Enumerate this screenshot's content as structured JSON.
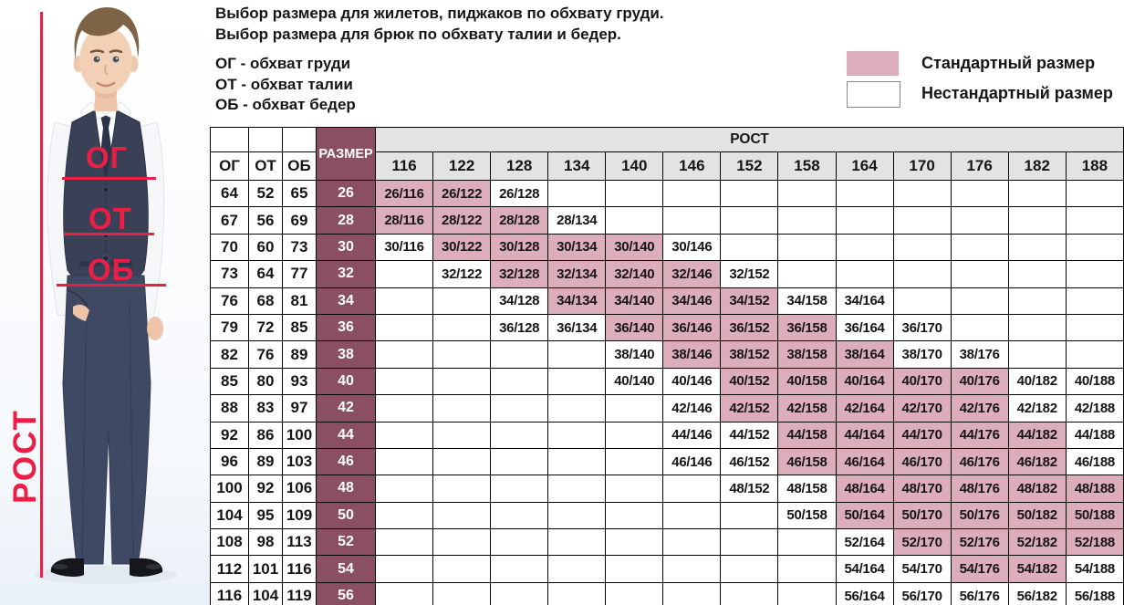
{
  "theme": {
    "accent-red": "#ed1e45",
    "standard-pink": "#dcadbb",
    "header-maroon": "#8b4f63",
    "header-gray": "#e3e3e3"
  },
  "description": {
    "line1": "Выбор размера для жилетов, пиджаков по обхвату груди.",
    "line2": "Выбор размера для брюк по обхвату талии и бедер.",
    "abbr1": "ОГ - обхват груди",
    "abbr2": "ОТ - обхват талии",
    "abbr3": "ОБ - обхват бедер"
  },
  "legend": {
    "standard_label": "Стандартный размер",
    "nonstandard_label": "Нестандартный размер",
    "standard_color": "#dcadbb",
    "nonstandard_color": "#ffffff"
  },
  "figure": {
    "chest_label": "ОГ",
    "waist_label": "ОТ",
    "hips_label": "ОБ",
    "height_label": "РОСТ"
  },
  "chart_data": {
    "type": "table",
    "rost_header": "РОСТ",
    "size_header": "РАЗМЕР",
    "measure_headers": [
      "ОГ",
      "ОТ",
      "ОБ"
    ],
    "heights": [
      "116",
      "122",
      "128",
      "134",
      "140",
      "146",
      "152",
      "158",
      "164",
      "170",
      "176",
      "182",
      "188"
    ],
    "legend_note": "s=1 Стандартный размер (розовый), s=0 Нестандартный размер (белый)",
    "rows": [
      {
        "og": "64",
        "ot": "52",
        "ob": "65",
        "size": "26",
        "cells": [
          {
            "t": "26/116",
            "s": 1
          },
          {
            "t": "26/122",
            "s": 1
          },
          {
            "t": "26/128",
            "s": 0
          },
          null,
          null,
          null,
          null,
          null,
          null,
          null,
          null,
          null,
          null
        ]
      },
      {
        "og": "67",
        "ot": "56",
        "ob": "69",
        "size": "28",
        "cells": [
          {
            "t": "28/116",
            "s": 1
          },
          {
            "t": "28/122",
            "s": 1
          },
          {
            "t": "28/128",
            "s": 1
          },
          {
            "t": "28/134",
            "s": 0
          },
          null,
          null,
          null,
          null,
          null,
          null,
          null,
          null,
          null
        ]
      },
      {
        "og": "70",
        "ot": "60",
        "ob": "73",
        "size": "30",
        "cells": [
          {
            "t": "30/116",
            "s": 0
          },
          {
            "t": "30/122",
            "s": 1
          },
          {
            "t": "30/128",
            "s": 1
          },
          {
            "t": "30/134",
            "s": 1
          },
          {
            "t": "30/140",
            "s": 1
          },
          {
            "t": "30/146",
            "s": 0
          },
          null,
          null,
          null,
          null,
          null,
          null,
          null
        ]
      },
      {
        "og": "73",
        "ot": "64",
        "ob": "77",
        "size": "32",
        "cells": [
          null,
          {
            "t": "32/122",
            "s": 0
          },
          {
            "t": "32/128",
            "s": 1
          },
          {
            "t": "32/134",
            "s": 1
          },
          {
            "t": "32/140",
            "s": 1
          },
          {
            "t": "32/146",
            "s": 1
          },
          {
            "t": "32/152",
            "s": 0
          },
          null,
          null,
          null,
          null,
          null,
          null
        ]
      },
      {
        "og": "76",
        "ot": "68",
        "ob": "81",
        "size": "34",
        "cells": [
          null,
          null,
          {
            "t": "34/128",
            "s": 0
          },
          {
            "t": "34/134",
            "s": 1
          },
          {
            "t": "34/140",
            "s": 1
          },
          {
            "t": "34/146",
            "s": 1
          },
          {
            "t": "34/152",
            "s": 1
          },
          {
            "t": "34/158",
            "s": 0
          },
          {
            "t": "34/164",
            "s": 0
          },
          null,
          null,
          null,
          null
        ]
      },
      {
        "og": "79",
        "ot": "72",
        "ob": "85",
        "size": "36",
        "cells": [
          null,
          null,
          {
            "t": "36/128",
            "s": 0
          },
          {
            "t": "36/134",
            "s": 0
          },
          {
            "t": "36/140",
            "s": 1
          },
          {
            "t": "36/146",
            "s": 1
          },
          {
            "t": "36/152",
            "s": 1
          },
          {
            "t": "36/158",
            "s": 1
          },
          {
            "t": "36/164",
            "s": 0
          },
          {
            "t": "36/170",
            "s": 0
          },
          null,
          null,
          null
        ]
      },
      {
        "og": "82",
        "ot": "76",
        "ob": "89",
        "size": "38",
        "cells": [
          null,
          null,
          null,
          null,
          {
            "t": "38/140",
            "s": 0
          },
          {
            "t": "38/146",
            "s": 1
          },
          {
            "t": "38/152",
            "s": 1
          },
          {
            "t": "38/158",
            "s": 1
          },
          {
            "t": "38/164",
            "s": 1
          },
          {
            "t": "38/170",
            "s": 0
          },
          {
            "t": "38/176",
            "s": 0
          },
          null,
          null
        ]
      },
      {
        "og": "85",
        "ot": "80",
        "ob": "93",
        "size": "40",
        "cells": [
          null,
          null,
          null,
          null,
          {
            "t": "40/140",
            "s": 0
          },
          {
            "t": "40/146",
            "s": 0
          },
          {
            "t": "40/152",
            "s": 1
          },
          {
            "t": "40/158",
            "s": 1
          },
          {
            "t": "40/164",
            "s": 1
          },
          {
            "t": "40/170",
            "s": 1
          },
          {
            "t": "40/176",
            "s": 1
          },
          {
            "t": "40/182",
            "s": 0
          },
          {
            "t": "40/188",
            "s": 0
          }
        ]
      },
      {
        "og": "88",
        "ot": "83",
        "ob": "97",
        "size": "42",
        "cells": [
          null,
          null,
          null,
          null,
          null,
          {
            "t": "42/146",
            "s": 0
          },
          {
            "t": "42/152",
            "s": 1
          },
          {
            "t": "42/158",
            "s": 1
          },
          {
            "t": "42/164",
            "s": 1
          },
          {
            "t": "42/170",
            "s": 1
          },
          {
            "t": "42/176",
            "s": 1
          },
          {
            "t": "42/182",
            "s": 0
          },
          {
            "t": "42/188",
            "s": 0
          }
        ]
      },
      {
        "og": "92",
        "ot": "86",
        "ob": "100",
        "size": "44",
        "cells": [
          null,
          null,
          null,
          null,
          null,
          {
            "t": "44/146",
            "s": 0
          },
          {
            "t": "44/152",
            "s": 0
          },
          {
            "t": "44/158",
            "s": 1
          },
          {
            "t": "44/164",
            "s": 1
          },
          {
            "t": "44/170",
            "s": 1
          },
          {
            "t": "44/176",
            "s": 1
          },
          {
            "t": "44/182",
            "s": 1
          },
          {
            "t": "44/188",
            "s": 0
          }
        ]
      },
      {
        "og": "96",
        "ot": "89",
        "ob": "103",
        "size": "46",
        "cells": [
          null,
          null,
          null,
          null,
          null,
          {
            "t": "46/146",
            "s": 0
          },
          {
            "t": "46/152",
            "s": 0
          },
          {
            "t": "46/158",
            "s": 1
          },
          {
            "t": "46/164",
            "s": 1
          },
          {
            "t": "46/170",
            "s": 1
          },
          {
            "t": "46/176",
            "s": 1
          },
          {
            "t": "46/182",
            "s": 1
          },
          {
            "t": "46/188",
            "s": 0
          }
        ]
      },
      {
        "og": "100",
        "ot": "92",
        "ob": "106",
        "size": "48",
        "cells": [
          null,
          null,
          null,
          null,
          null,
          null,
          {
            "t": "48/152",
            "s": 0
          },
          {
            "t": "48/158",
            "s": 0
          },
          {
            "t": "48/164",
            "s": 1
          },
          {
            "t": "48/170",
            "s": 1
          },
          {
            "t": "48/176",
            "s": 1
          },
          {
            "t": "48/182",
            "s": 1
          },
          {
            "t": "48/188",
            "s": 1
          }
        ]
      },
      {
        "og": "104",
        "ot": "95",
        "ob": "109",
        "size": "50",
        "cells": [
          null,
          null,
          null,
          null,
          null,
          null,
          null,
          {
            "t": "50/158",
            "s": 0
          },
          {
            "t": "50/164",
            "s": 1
          },
          {
            "t": "50/170",
            "s": 1
          },
          {
            "t": "50/176",
            "s": 1
          },
          {
            "t": "50/182",
            "s": 1
          },
          {
            "t": "50/188",
            "s": 1
          }
        ]
      },
      {
        "og": "108",
        "ot": "98",
        "ob": "113",
        "size": "52",
        "cells": [
          null,
          null,
          null,
          null,
          null,
          null,
          null,
          null,
          {
            "t": "52/164",
            "s": 0
          },
          {
            "t": "52/170",
            "s": 1
          },
          {
            "t": "52/176",
            "s": 1
          },
          {
            "t": "52/182",
            "s": 1
          },
          {
            "t": "52/188",
            "s": 1
          }
        ]
      },
      {
        "og": "112",
        "ot": "101",
        "ob": "116",
        "size": "54",
        "cells": [
          null,
          null,
          null,
          null,
          null,
          null,
          null,
          null,
          {
            "t": "54/164",
            "s": 0
          },
          {
            "t": "54/170",
            "s": 0
          },
          {
            "t": "54/176",
            "s": 1
          },
          {
            "t": "54/182",
            "s": 1
          },
          {
            "t": "54/188",
            "s": 0
          }
        ]
      },
      {
        "og": "116",
        "ot": "104",
        "ob": "119",
        "size": "56",
        "cells": [
          null,
          null,
          null,
          null,
          null,
          null,
          null,
          null,
          {
            "t": "56/164",
            "s": 0
          },
          {
            "t": "56/170",
            "s": 0
          },
          {
            "t": "56/176",
            "s": 0
          },
          {
            "t": "56/182",
            "s": 0
          },
          {
            "t": "56/188",
            "s": 0
          }
        ]
      }
    ]
  }
}
